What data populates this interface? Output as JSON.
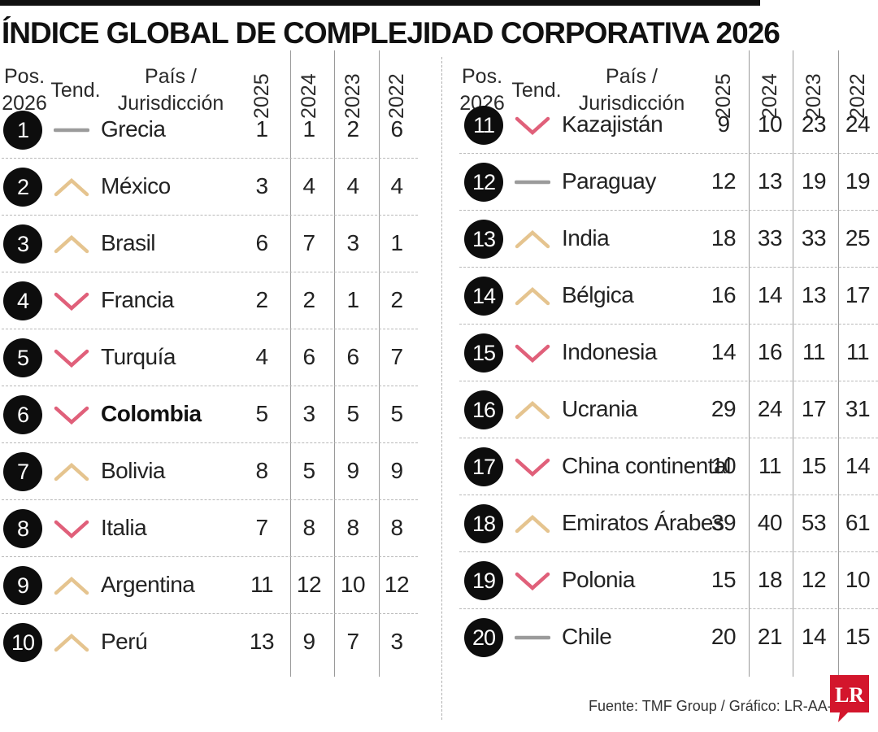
{
  "title": "ÍNDICE GLOBAL DE COMPLEJIDAD CORPORATIVA 2026",
  "headers": {
    "pos_line1": "Pos.",
    "pos_line2": "2026",
    "tend": "Tend.",
    "country_line1": "País /",
    "country_line2": "Jurisdicción",
    "years": [
      "2025",
      "2024",
      "2023",
      "2022"
    ]
  },
  "colors": {
    "up": "#e5c48f",
    "down": "#e0607a",
    "same": "#9b9b9b",
    "circle": "#0d0d0d",
    "logo": "#d3162c"
  },
  "chart_data": {
    "type": "table",
    "title": "ÍNDICE GLOBAL DE COMPLEJIDAD CORPORATIVA 2026",
    "columns": [
      "Pos. 2026",
      "Tend.",
      "País / Jurisdicción",
      "2025",
      "2024",
      "2023",
      "2022"
    ],
    "rows": [
      {
        "pos": "1",
        "trend": "same",
        "country": "Grecia",
        "y2025": "1",
        "y2024": "1",
        "y2023": "2",
        "y2022": "6"
      },
      {
        "pos": "2",
        "trend": "up",
        "country": "México",
        "y2025": "3",
        "y2024": "4",
        "y2023": "4",
        "y2022": "4"
      },
      {
        "pos": "3",
        "trend": "up",
        "country": "Brasil",
        "y2025": "6",
        "y2024": "7",
        "y2023": "3",
        "y2022": "1"
      },
      {
        "pos": "4",
        "trend": "down",
        "country": "Francia",
        "y2025": "2",
        "y2024": "2",
        "y2023": "1",
        "y2022": "2"
      },
      {
        "pos": "5",
        "trend": "down",
        "country": "Turquía",
        "y2025": "4",
        "y2024": "6",
        "y2023": "6",
        "y2022": "7"
      },
      {
        "pos": "6",
        "trend": "down",
        "country": "Colombia",
        "bold": true,
        "y2025": "5",
        "y2024": "3",
        "y2023": "5",
        "y2022": "5"
      },
      {
        "pos": "7",
        "trend": "up",
        "country": "Bolivia",
        "y2025": "8",
        "y2024": "5",
        "y2023": "9",
        "y2022": "9"
      },
      {
        "pos": "8",
        "trend": "down",
        "country": "Italia",
        "y2025": "7",
        "y2024": "8",
        "y2023": "8",
        "y2022": "8"
      },
      {
        "pos": "9",
        "trend": "up",
        "country": "Argentina",
        "y2025": "11",
        "y2024": "12",
        "y2023": "10",
        "y2022": "12"
      },
      {
        "pos": "10",
        "trend": "up",
        "country": "Perú",
        "y2025": "13",
        "y2024": "9",
        "y2023": "7",
        "y2022": "3"
      },
      {
        "pos": "11",
        "trend": "down",
        "country": "Kazajistán",
        "y2025": "9",
        "y2024": "10",
        "y2023": "23",
        "y2022": "24"
      },
      {
        "pos": "12",
        "trend": "same",
        "country": "Paraguay",
        "y2025": "12",
        "y2024": "13",
        "y2023": "19",
        "y2022": "19"
      },
      {
        "pos": "13",
        "trend": "up",
        "country": "India",
        "y2025": "18",
        "y2024": "33",
        "y2023": "33",
        "y2022": "25"
      },
      {
        "pos": "14",
        "trend": "up",
        "country": "Bélgica",
        "y2025": "16",
        "y2024": "14",
        "y2023": "13",
        "y2022": "17"
      },
      {
        "pos": "15",
        "trend": "down",
        "country": "Indonesia",
        "y2025": "14",
        "y2024": "16",
        "y2023": "11",
        "y2022": "11"
      },
      {
        "pos": "16",
        "trend": "up",
        "country": "Ucrania",
        "y2025": "29",
        "y2024": "24",
        "y2023": "17",
        "y2022": "31"
      },
      {
        "pos": "17",
        "trend": "down",
        "country": "China continental",
        "y2025": "10",
        "y2024": "11",
        "y2023": "15",
        "y2022": "14"
      },
      {
        "pos": "18",
        "trend": "up",
        "country": "Emiratos Árabes",
        "y2025": "39",
        "y2024": "40",
        "y2023": "53",
        "y2022": "61"
      },
      {
        "pos": "19",
        "trend": "down",
        "country": "Polonia",
        "y2025": "15",
        "y2024": "18",
        "y2023": "12",
        "y2022": "10"
      },
      {
        "pos": "20",
        "trend": "same",
        "country": "Chile",
        "y2025": "20",
        "y2024": "21",
        "y2023": "14",
        "y2022": "15"
      }
    ]
  },
  "source": "Fuente: TMF Group / Gráfico: LR-AA-ER",
  "logo_text": "LR"
}
